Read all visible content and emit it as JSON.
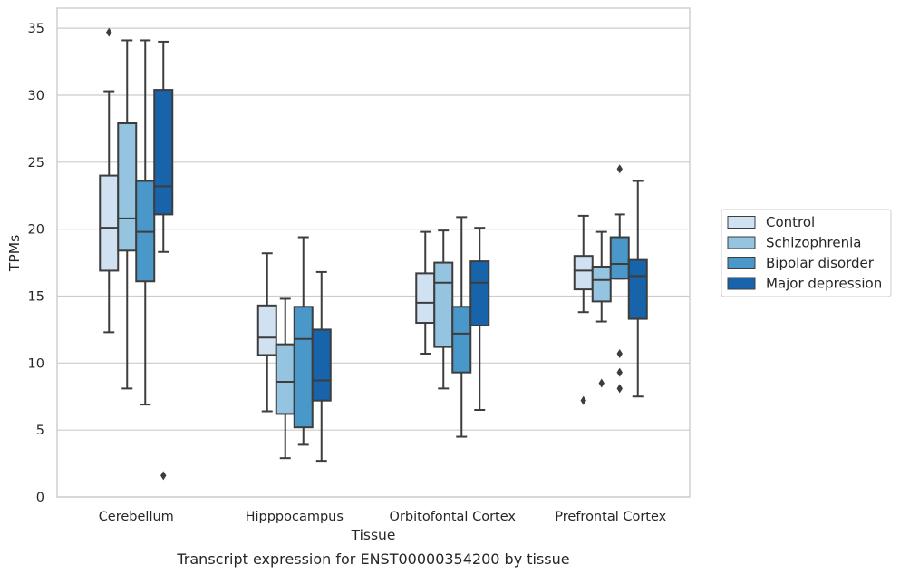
{
  "caption": "Transcript expression for ENST00000354200 by tissue",
  "chart_data": {
    "type": "boxplot",
    "xlabel": "Tissue",
    "ylabel": "TPMs",
    "ylim": [
      0,
      36.5
    ],
    "yticks": [
      0,
      5,
      10,
      15,
      20,
      25,
      30,
      35
    ],
    "grid": "horizontal",
    "legend_position": "right",
    "categories": [
      "Cerebellum",
      "Hipppocampus",
      "Orbitofontal Cortex",
      "Prefrontal Cortex"
    ],
    "series": [
      {
        "name": "Control",
        "color": "#d0e1f2",
        "boxes": [
          {
            "whislo": 12.3,
            "q1": 16.9,
            "med": 20.1,
            "q3": 24.0,
            "whishi": 30.3,
            "fliers": [
              34.7
            ]
          },
          {
            "whislo": 6.4,
            "q1": 10.6,
            "med": 11.9,
            "q3": 14.3,
            "whishi": 18.2,
            "fliers": []
          },
          {
            "whislo": 10.7,
            "q1": 13.0,
            "med": 14.5,
            "q3": 16.7,
            "whishi": 19.8,
            "fliers": []
          },
          {
            "whislo": 13.8,
            "q1": 15.5,
            "med": 16.9,
            "q3": 18.0,
            "whishi": 21.0,
            "fliers": [
              7.2
            ]
          }
        ]
      },
      {
        "name": "Schizophrenia",
        "color": "#94c4df",
        "boxes": [
          {
            "whislo": 8.1,
            "q1": 18.4,
            "med": 20.8,
            "q3": 27.9,
            "whishi": 34.1,
            "fliers": []
          },
          {
            "whislo": 2.9,
            "q1": 6.2,
            "med": 8.6,
            "q3": 11.4,
            "whishi": 14.8,
            "fliers": []
          },
          {
            "whislo": 8.1,
            "q1": 11.2,
            "med": 16.0,
            "q3": 17.5,
            "whishi": 19.9,
            "fliers": []
          },
          {
            "whislo": 13.1,
            "q1": 14.6,
            "med": 16.2,
            "q3": 17.2,
            "whishi": 19.8,
            "fliers": [
              8.5
            ]
          }
        ]
      },
      {
        "name": "Bipolar disorder",
        "color": "#4a98c9",
        "boxes": [
          {
            "whislo": 6.9,
            "q1": 16.1,
            "med": 19.8,
            "q3": 23.6,
            "whishi": 34.1,
            "fliers": []
          },
          {
            "whislo": 3.9,
            "q1": 5.2,
            "med": 11.8,
            "q3": 14.2,
            "whishi": 19.4,
            "fliers": []
          },
          {
            "whislo": 4.5,
            "q1": 9.3,
            "med": 12.2,
            "q3": 14.2,
            "whishi": 20.9,
            "fliers": []
          },
          {
            "whislo": 16.3,
            "q1": 16.3,
            "med": 17.4,
            "q3": 19.4,
            "whishi": 21.1,
            "fliers": [
              24.5,
              10.7,
              9.3,
              8.1
            ]
          }
        ]
      },
      {
        "name": "Major depression",
        "color": "#1764ab",
        "boxes": [
          {
            "whislo": 18.3,
            "q1": 21.1,
            "med": 23.2,
            "q3": 30.4,
            "whishi": 34.0,
            "fliers": [
              1.6
            ]
          },
          {
            "whislo": 2.7,
            "q1": 7.2,
            "med": 8.7,
            "q3": 12.5,
            "whishi": 16.8,
            "fliers": []
          },
          {
            "whislo": 6.5,
            "q1": 12.8,
            "med": 16.0,
            "q3": 17.6,
            "whishi": 20.1,
            "fliers": []
          },
          {
            "whislo": 7.5,
            "q1": 13.3,
            "med": 16.5,
            "q3": 17.7,
            "whishi": 23.6,
            "fliers": []
          }
        ]
      }
    ]
  }
}
